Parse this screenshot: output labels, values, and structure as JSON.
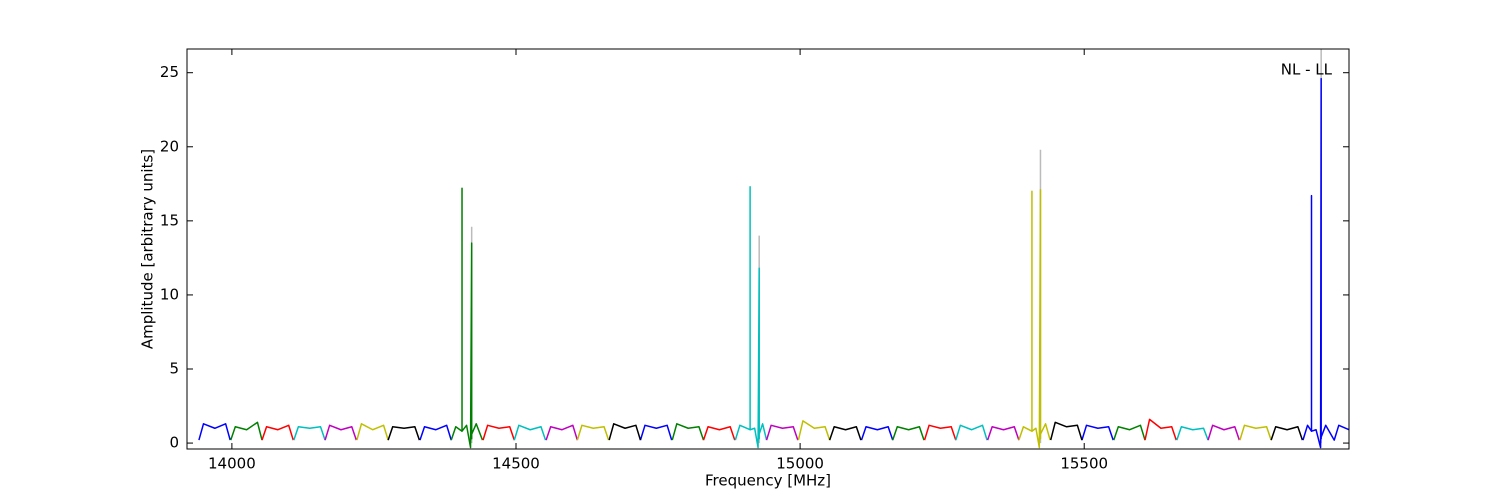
{
  "chart_data": {
    "type": "line",
    "xlabel": "Frequency [MHz]",
    "ylabel": "Amplitude [arbitrary units]",
    "annotation": "NL - LL",
    "xlim": [
      13921,
      15966
    ],
    "ylim": [
      -0.4,
      26.6
    ],
    "xticks": [
      14000,
      14500,
      15000,
      15500
    ],
    "yticks": [
      0,
      5,
      10,
      15,
      20,
      25
    ],
    "series": [
      {
        "color": "#bbbbbb",
        "x": [
          14422,
          14422,
          null,
          14928,
          14928,
          null,
          15423,
          15423,
          null,
          15917,
          15917
        ],
        "values": [
          0,
          14.6,
          null,
          0,
          14.0,
          null,
          0,
          19.8,
          null,
          0,
          27
        ]
      },
      {
        "color": "#0000ff",
        "x": [
          13942,
          13950,
          13970,
          13989,
          13997,
          null,
          14331,
          14339,
          14359,
          14378,
          14386,
          null,
          14719,
          14727,
          14747,
          14766,
          14774,
          null,
          15108,
          15116,
          15136,
          15155,
          15163,
          null,
          15496,
          15504,
          15524,
          15543,
          15551,
          null,
          15885,
          15893,
          15900,
          15900,
          15900,
          15908,
          15916,
          15917,
          15917,
          15917,
          15925,
          15940,
          15948,
          15966
        ],
        "values": [
          0.2,
          1.3,
          1.0,
          1.3,
          0.2,
          null,
          0.2,
          1.1,
          0.9,
          1.2,
          0.2,
          null,
          0.2,
          1.2,
          1.0,
          1.2,
          0.2,
          null,
          0.2,
          1.1,
          0.9,
          1.1,
          0.2,
          null,
          0.2,
          1.2,
          1.0,
          1.1,
          0.2,
          null,
          0.2,
          1.2,
          0.8,
          16.7,
          0.8,
          0.9,
          -0.3,
          24.6,
          0.3,
          0.4,
          1.2,
          0.2,
          1.2,
          0.9
        ]
      },
      {
        "color": "#008000",
        "x": [
          13998,
          14006,
          14026,
          14045,
          14053,
          null,
          14386,
          14394,
          14405,
          14405,
          14405,
          14413,
          14420,
          14422,
          14422,
          14422,
          14430,
          14441,
          null,
          14775,
          14783,
          14803,
          14822,
          14830,
          null,
          15163,
          15171,
          15191,
          15210,
          15218,
          null,
          15552,
          15560,
          15580,
          15599,
          15607
        ],
        "values": [
          0.2,
          1.1,
          0.9,
          1.4,
          0.2,
          null,
          0.2,
          1.1,
          0.8,
          17.2,
          0.8,
          1.2,
          -0.3,
          13.5,
          0.3,
          0.6,
          1.3,
          0.2,
          null,
          0.2,
          1.3,
          1.0,
          1.1,
          0.2,
          null,
          0.2,
          1.1,
          0.9,
          1.1,
          0.2,
          null,
          0.2,
          1.1,
          0.9,
          1.2,
          0.2
        ]
      },
      {
        "color": "#ff0000",
        "x": [
          14053,
          14061,
          14081,
          14100,
          14108,
          null,
          14442,
          14450,
          14470,
          14489,
          14497,
          null,
          14830,
          14838,
          14858,
          14877,
          14885,
          null,
          15219,
          15227,
          15247,
          15266,
          15274,
          null,
          15607,
          15615,
          15635,
          15654,
          15662
        ],
        "values": [
          0.2,
          1.1,
          0.9,
          1.2,
          0.2,
          null,
          0.2,
          1.2,
          1.0,
          1.1,
          0.2,
          null,
          0.2,
          1.1,
          0.9,
          1.1,
          0.2,
          null,
          0.2,
          1.2,
          1.0,
          1.1,
          0.2,
          null,
          0.2,
          1.6,
          1.0,
          1.1,
          0.2
        ]
      },
      {
        "color": "#00bfbf",
        "x": [
          14109,
          14117,
          14137,
          14156,
          14164,
          null,
          14497,
          14505,
          14525,
          14544,
          14552,
          null,
          14886,
          14894,
          14912,
          14912,
          14912,
          14920,
          14926,
          14928,
          14928,
          14928,
          14934,
          14941,
          null,
          15274,
          15282,
          15302,
          15321,
          15329,
          null,
          15663,
          15671,
          15691,
          15710,
          15718
        ],
        "values": [
          0.2,
          1.1,
          1.0,
          1.1,
          0.2,
          null,
          0.2,
          1.2,
          0.9,
          1.1,
          0.2,
          null,
          0.2,
          1.2,
          0.9,
          17.3,
          0.9,
          1.0,
          -0.3,
          11.8,
          0.3,
          0.6,
          1.3,
          0.2,
          null,
          0.2,
          1.2,
          0.9,
          1.2,
          0.2,
          null,
          0.2,
          1.1,
          0.9,
          1.0,
          0.2
        ]
      },
      {
        "color": "#bf00bf",
        "x": [
          14164,
          14172,
          14192,
          14211,
          14219,
          null,
          14553,
          14561,
          14581,
          14600,
          14608,
          null,
          14941,
          14949,
          14969,
          14988,
          14996,
          null,
          15330,
          15338,
          15358,
          15377,
          15385,
          null,
          15718,
          15726,
          15746,
          15765,
          15773
        ],
        "values": [
          0.2,
          1.2,
          0.9,
          1.1,
          0.2,
          null,
          0.2,
          1.1,
          0.9,
          1.2,
          0.2,
          null,
          0.2,
          1.2,
          1.0,
          1.1,
          0.2,
          null,
          0.2,
          1.1,
          0.9,
          1.1,
          0.2,
          null,
          0.2,
          1.2,
          0.9,
          1.1,
          0.2
        ]
      },
      {
        "color": "#bfbf00",
        "x": [
          14220,
          14228,
          14248,
          14267,
          14275,
          null,
          14608,
          14616,
          14636,
          14655,
          14663,
          null,
          14997,
          15005,
          15025,
          15044,
          15052,
          null,
          15385,
          15393,
          15408,
          15408,
          15408,
          15415,
          15421,
          15423,
          15423,
          15423,
          15432,
          15440,
          null,
          15774,
          15782,
          15802,
          15821,
          15829
        ],
        "values": [
          0.2,
          1.3,
          0.9,
          1.2,
          0.2,
          null,
          0.2,
          1.2,
          1.0,
          1.1,
          0.2,
          null,
          0.2,
          1.5,
          1.0,
          1.1,
          0.2,
          null,
          0.2,
          1.1,
          0.8,
          17.0,
          0.8,
          1.0,
          -0.3,
          17.1,
          0.3,
          0.6,
          1.3,
          0.2,
          null,
          0.2,
          1.2,
          1.0,
          1.1,
          0.2
        ]
      },
      {
        "color": "#000000",
        "x": [
          14275,
          14283,
          14303,
          14322,
          14330,
          null,
          14664,
          14672,
          14692,
          14711,
          14719,
          null,
          15052,
          15060,
          15080,
          15099,
          15107,
          null,
          15441,
          15449,
          15469,
          15488,
          15496,
          null,
          15829,
          15837,
          15857,
          15876,
          15884
        ],
        "values": [
          0.2,
          1.1,
          1.0,
          1.1,
          0.2,
          null,
          0.2,
          1.3,
          1.0,
          1.2,
          0.2,
          null,
          0.2,
          1.1,
          0.9,
          1.1,
          0.2,
          null,
          0.2,
          1.4,
          1.1,
          1.2,
          0.2,
          null,
          0.2,
          1.1,
          0.9,
          1.1,
          0.2
        ]
      }
    ]
  }
}
